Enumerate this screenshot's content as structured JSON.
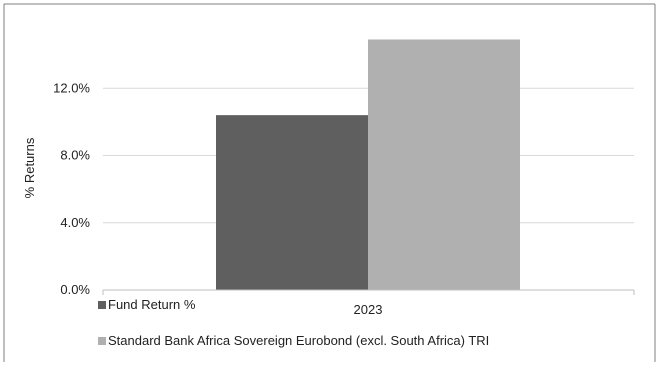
{
  "chart_data": {
    "type": "bar",
    "title": "",
    "xlabel": "",
    "ylabel": "% Returns",
    "categories": [
      "2023"
    ],
    "series": [
      {
        "name": "Fund Return %",
        "values": [
          10.4
        ],
        "color": "#5f5f5f"
      },
      {
        "name": "Standard Bank Africa Sovereign Eurobond (excl. South Africa) TRI",
        "values": [
          14.9
        ],
        "color": "#b0b0b0"
      }
    ],
    "ylim": [
      0,
      16
    ],
    "yticks": [
      0,
      4,
      8,
      12
    ],
    "ytick_labels": [
      "0.0%",
      "4.0%",
      "8.0%",
      "12.0%"
    ],
    "grid": true,
    "legend_position": "bottom-left",
    "border_color": "#7f7f7f",
    "grid_color": "#d9d9d9"
  }
}
